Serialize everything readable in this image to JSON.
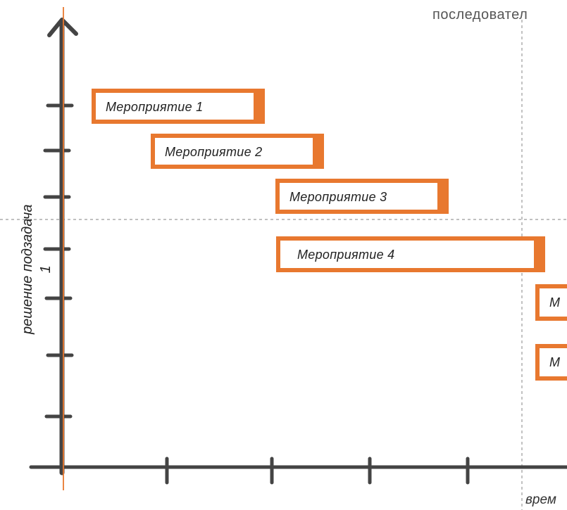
{
  "diagram": {
    "top_label": "последовател",
    "bottom_label": "врем",
    "y_axis_label_line1": "решение  подзадача",
    "y_axis_label_line2": "1",
    "activities": [
      {
        "label": "Мероприятие  1"
      },
      {
        "label": "Мероприятие  2"
      },
      {
        "label": "Мероприятие  3"
      },
      {
        "label": "Мероприятие  4"
      },
      {
        "label": "М"
      },
      {
        "label": "М"
      }
    ],
    "colors": {
      "accent": "#e8782f",
      "axis": "#444444",
      "guide": "#9a9a9a",
      "text": "#222222"
    }
  }
}
